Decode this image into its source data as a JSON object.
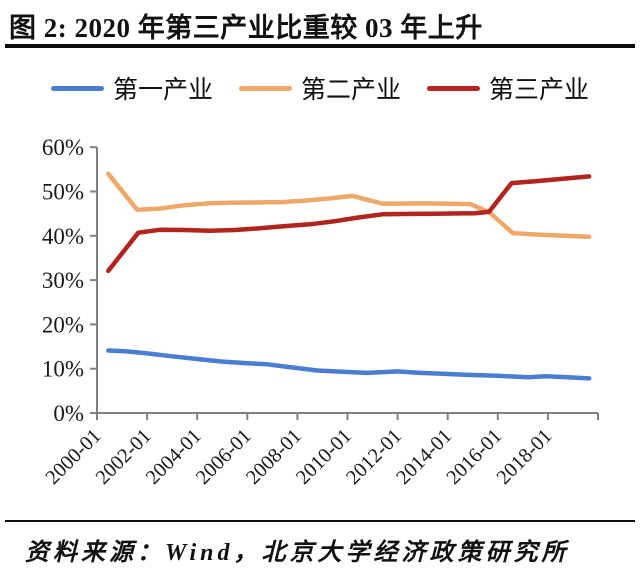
{
  "header": {
    "title": "图 2: 2020 年第三产业比重较 03 年上升"
  },
  "footer": {
    "source": "资料来源：Wind，北京大学经济政策研究所"
  },
  "chart_data": {
    "type": "line",
    "title": "图 2: 2020 年第三产业比重较 03 年上升",
    "xlabel": "",
    "ylabel": "",
    "grid": false,
    "legend_position": "top",
    "axis_color": "#808080",
    "y_axis": {
      "min": 0,
      "max": 60,
      "step": 10,
      "tick_labels": [
        "0%",
        "10%",
        "20%",
        "30%",
        "40%",
        "50%",
        "60%"
      ],
      "tick_values": [
        0,
        10,
        20,
        30,
        40,
        50,
        60
      ]
    },
    "x_axis": {
      "range_years": [
        2000,
        2020
      ],
      "tick_years": [
        2000,
        2002,
        2004,
        2006,
        2008,
        2010,
        2012,
        2014,
        2016,
        2018,
        2020
      ],
      "tick_labels": [
        "2000-01",
        "2002-01",
        "2004-01",
        "2006-01",
        "2008-01",
        "2010-01",
        "2012-01",
        "2014-01",
        "2016-01",
        "2018-01"
      ]
    },
    "series": [
      {
        "key": "primary",
        "name": "第一产业",
        "color": "#4a7ed2",
        "points": [
          [
            2000.45,
            14.1
          ],
          [
            2001.2,
            13.9
          ],
          [
            2002,
            13.45
          ],
          [
            2003,
            12.8
          ],
          [
            2004,
            12.2
          ],
          [
            2005,
            11.6
          ],
          [
            2006,
            11.25
          ],
          [
            2006.8,
            11.0
          ],
          [
            2007.6,
            10.4
          ],
          [
            2008.8,
            9.6
          ],
          [
            2009.8,
            9.3
          ],
          [
            2010.8,
            9.05
          ],
          [
            2012,
            9.4
          ],
          [
            2012.8,
            9.1
          ],
          [
            2013.8,
            8.85
          ],
          [
            2014.8,
            8.6
          ],
          [
            2016,
            8.4
          ],
          [
            2017.2,
            8.05
          ],
          [
            2017.9,
            8.3
          ],
          [
            2018.7,
            8.1
          ],
          [
            2019.65,
            7.8
          ]
        ]
      },
      {
        "key": "secondary",
        "name": "第二产业",
        "color": "#eda86a",
        "points": [
          [
            2000.45,
            54.0
          ],
          [
            2001.6,
            45.9
          ],
          [
            2002.5,
            46.15
          ],
          [
            2003.5,
            46.9
          ],
          [
            2004.5,
            47.35
          ],
          [
            2005.5,
            47.5
          ],
          [
            2006.5,
            47.55
          ],
          [
            2007.4,
            47.6
          ],
          [
            2008.3,
            47.95
          ],
          [
            2009.3,
            48.45
          ],
          [
            2010.2,
            49.0
          ],
          [
            2011.4,
            47.25
          ],
          [
            2012.5,
            47.3
          ],
          [
            2013.5,
            47.3
          ],
          [
            2014.9,
            47.15
          ],
          [
            2015.65,
            45.4
          ],
          [
            2016.6,
            40.6
          ],
          [
            2017.5,
            40.3
          ],
          [
            2018.5,
            40.05
          ],
          [
            2019.65,
            39.8
          ]
        ]
      },
      {
        "key": "tertiary",
        "name": "第三产业",
        "color": "#b2251e",
        "points": [
          [
            2000.45,
            32.1
          ],
          [
            2001.65,
            40.7
          ],
          [
            2002.5,
            41.35
          ],
          [
            2003.5,
            41.3
          ],
          [
            2004.5,
            41.15
          ],
          [
            2005.5,
            41.3
          ],
          [
            2006.5,
            41.7
          ],
          [
            2007.5,
            42.2
          ],
          [
            2008.5,
            42.6
          ],
          [
            2009.5,
            43.3
          ],
          [
            2010.4,
            44.1
          ],
          [
            2011.4,
            44.85
          ],
          [
            2012.5,
            44.95
          ],
          [
            2013.5,
            45.0
          ],
          [
            2014.5,
            45.05
          ],
          [
            2015.1,
            45.1
          ],
          [
            2015.65,
            45.4
          ],
          [
            2016.55,
            51.9
          ],
          [
            2017.5,
            52.3
          ],
          [
            2018.6,
            52.9
          ],
          [
            2019.65,
            53.4
          ]
        ]
      }
    ]
  }
}
